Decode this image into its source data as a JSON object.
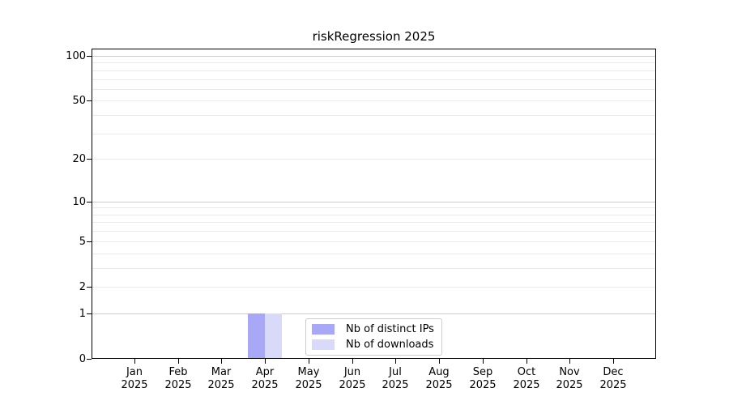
{
  "chart_data": {
    "type": "bar",
    "title": "riskRegression 2025",
    "categories": [
      "Jan",
      "Feb",
      "Mar",
      "Apr",
      "May",
      "Jun",
      "Jul",
      "Aug",
      "Sep",
      "Oct",
      "Nov",
      "Dec"
    ],
    "x_year": "2025",
    "series": [
      {
        "name": "Nb of distinct IPs",
        "color": "#a8a8f6",
        "values": [
          0,
          0,
          0,
          1,
          0,
          0,
          0,
          0,
          0,
          0,
          0,
          0
        ]
      },
      {
        "name": "Nb of downloads",
        "color": "#d9d9f9",
        "values": [
          0,
          0,
          0,
          1,
          0,
          0,
          0,
          0,
          0,
          0,
          0,
          0
        ]
      }
    ],
    "xlabel": "",
    "ylabel": "",
    "yscale": "log1p",
    "ylim": [
      0,
      112
    ],
    "yticks": [
      0,
      1,
      2,
      5,
      10,
      20,
      50,
      100
    ],
    "grid": "horizontal",
    "grid_minor_values": [
      2,
      3,
      4,
      5,
      6,
      7,
      8,
      9,
      20,
      30,
      40,
      50,
      60,
      70,
      80,
      90
    ],
    "grid_major_values": [
      1,
      10,
      100
    ],
    "legend_position": "inside-bottom-center",
    "colors": {
      "distinct_ips_bar": "#a8a8f6",
      "downloads_bar": "#d9d9f9",
      "grid_major": "#cccccc",
      "grid_minor": "#ebebeb",
      "spine": "#000000",
      "text": "#000000"
    }
  }
}
